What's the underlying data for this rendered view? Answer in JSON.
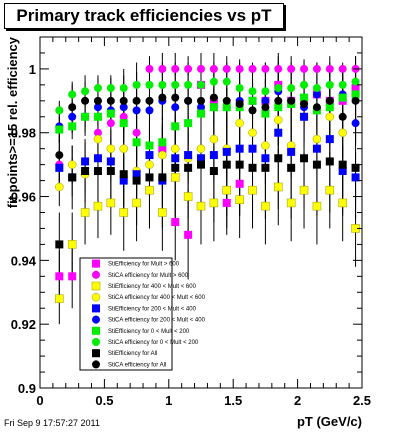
{
  "title": "Primary track efficiencies vs pT",
  "timestamp": "Fri Sep  9 17:57:27 2011",
  "chart_data": {
    "type": "scatter",
    "xlabel": "pT (GeV/c)",
    "ylabel": "fit points>=15 rel. efficiency",
    "xlim": [
      0,
      2.5
    ],
    "ylim": [
      0.9,
      1.01
    ],
    "xticks": [
      "0",
      "0.5",
      "1",
      "1.5",
      "2",
      "2.5"
    ],
    "yticks": [
      "0.9",
      "0.92",
      "0.94",
      "0.96",
      "0.98",
      "1"
    ],
    "legend_position": "bottom-center",
    "series": [
      {
        "name": "StiEfficiency  for Mult > 600",
        "color": "#ff00ff",
        "marker": "square",
        "x": [
          0.15,
          0.25,
          0.85,
          0.95,
          1.05,
          1.15,
          1.25,
          1.35,
          1.45,
          1.55,
          1.65,
          1.75,
          1.85,
          1.95,
          2.05,
          2.15,
          2.25,
          2.35,
          2.45
        ],
        "y": [
          0.935,
          0.935,
          0.962,
          0.975,
          0.952,
          0.948,
          0.995,
          0.99,
          0.958,
          0.964,
          0.99,
          0.99,
          0.995,
          0.99,
          0.99,
          0.992,
          0.99,
          0.99,
          0.994
        ],
        "err": [
          0.008,
          0.01,
          0.01,
          0.01,
          0.012,
          0.014,
          0.01,
          0.01,
          0.01,
          0.01,
          0.01,
          0.01,
          0.01,
          0.01,
          0.01,
          0.01,
          0.01,
          0.01,
          0.01
        ]
      },
      {
        "name": "StiCA efficiency  for Mult > 600",
        "color": "#ff00ff",
        "marker": "circle",
        "x": [
          0.15,
          0.35,
          0.45,
          0.55,
          0.65,
          0.75,
          0.85,
          0.95,
          1.05,
          1.15,
          1.25,
          1.35,
          1.45,
          1.55,
          1.65,
          1.75,
          1.85,
          1.95,
          2.05,
          2.15,
          2.25,
          2.35,
          2.45
        ],
        "y": [
          0.97,
          0.985,
          0.98,
          0.983,
          0.985,
          0.98,
          1.0,
          1.0,
          1.0,
          1.0,
          1.0,
          1.0,
          1.0,
          1.0,
          1.0,
          1.0,
          1.0,
          1.0,
          1.0,
          1.0,
          1.0,
          1.0,
          1.0
        ],
        "err": [
          0.008,
          0.006,
          0.006,
          0.006,
          0.006,
          0.008,
          0.002,
          0.002,
          0.002,
          0.002,
          0.002,
          0.002,
          0.002,
          0.002,
          0.002,
          0.002,
          0.002,
          0.002,
          0.002,
          0.002,
          0.002,
          0.002,
          0.002
        ]
      },
      {
        "name": "StiEfficiency  for 400 < Mult < 600",
        "color": "#ffff00",
        "marker": "square",
        "x": [
          0.15,
          0.25,
          0.35,
          0.45,
          0.55,
          0.65,
          0.75,
          0.85,
          0.95,
          1.05,
          1.15,
          1.25,
          1.35,
          1.45,
          1.55,
          1.65,
          1.75,
          1.85,
          1.95,
          2.05,
          2.15,
          2.25,
          2.35,
          2.45
        ],
        "y": [
          0.928,
          0.945,
          0.955,
          0.957,
          0.958,
          0.955,
          0.958,
          0.962,
          0.955,
          0.966,
          0.96,
          0.957,
          0.958,
          0.962,
          0.959,
          0.962,
          0.957,
          0.963,
          0.958,
          0.962,
          0.957,
          0.962,
          0.958,
          0.95
        ],
        "err": [
          0.008,
          0.01,
          0.01,
          0.01,
          0.01,
          0.012,
          0.012,
          0.012,
          0.012,
          0.012,
          0.012,
          0.012,
          0.012,
          0.012,
          0.012,
          0.012,
          0.012,
          0.012,
          0.012,
          0.012,
          0.012,
          0.012,
          0.012,
          0.012
        ]
      },
      {
        "name": "StiCA efficiency  for 400 < Mult < 600",
        "color": "#ffff00",
        "marker": "circle",
        "x": [
          0.15,
          0.25,
          0.35,
          0.45,
          0.55,
          0.65,
          0.75,
          0.85,
          0.95,
          1.05,
          1.15,
          1.25,
          1.35,
          1.45,
          1.55,
          1.65,
          1.75,
          1.85,
          1.95,
          2.05,
          2.15,
          2.25,
          2.35,
          2.45
        ],
        "y": [
          0.963,
          0.97,
          0.967,
          0.978,
          0.975,
          0.975,
          0.968,
          0.97,
          0.973,
          0.975,
          0.972,
          0.975,
          0.978,
          0.975,
          0.983,
          0.98,
          0.976,
          0.984,
          0.976,
          0.985,
          0.978,
          0.985,
          0.98,
          0.992
        ],
        "err": [
          0.006,
          0.006,
          0.006,
          0.006,
          0.006,
          0.008,
          0.008,
          0.008,
          0.008,
          0.008,
          0.008,
          0.008,
          0.008,
          0.008,
          0.008,
          0.008,
          0.008,
          0.008,
          0.008,
          0.008,
          0.008,
          0.008,
          0.008,
          0.008
        ]
      },
      {
        "name": "StiEfficiency  for 200 < Mult < 400",
        "color": "#0000ff",
        "marker": "square",
        "x": [
          0.15,
          0.25,
          0.35,
          0.45,
          0.55,
          0.65,
          0.75,
          0.85,
          0.95,
          1.05,
          1.15,
          1.25,
          1.35,
          1.45,
          1.55,
          1.65,
          1.75,
          1.85,
          1.95,
          2.05,
          2.15,
          2.25,
          2.35,
          2.45
        ],
        "y": [
          0.969,
          0.966,
          0.971,
          0.972,
          0.971,
          0.965,
          0.967,
          0.973,
          0.965,
          0.972,
          0.973,
          0.972,
          0.973,
          0.974,
          0.975,
          0.975,
          0.972,
          0.98,
          0.974,
          0.985,
          0.975,
          0.978,
          0.968,
          0.966
        ],
        "err": [
          0.006,
          0.006,
          0.006,
          0.006,
          0.006,
          0.008,
          0.008,
          0.008,
          0.008,
          0.008,
          0.008,
          0.008,
          0.008,
          0.008,
          0.008,
          0.008,
          0.008,
          0.008,
          0.008,
          0.008,
          0.008,
          0.008,
          0.008,
          0.008
        ]
      },
      {
        "name": "StiCA efficiency  for 200 < Mult < 400",
        "color": "#0000ff",
        "marker": "circle",
        "x": [
          0.15,
          0.25,
          0.35,
          0.45,
          0.55,
          0.65,
          0.75,
          0.85,
          0.95,
          1.05,
          1.15,
          1.25,
          1.35,
          1.45,
          1.55,
          1.65,
          1.75,
          1.85,
          1.95,
          2.05,
          2.15,
          2.25,
          2.35,
          2.45
        ],
        "y": [
          0.982,
          0.985,
          0.985,
          0.988,
          0.987,
          0.988,
          0.987,
          0.987,
          0.99,
          0.988,
          0.99,
          0.988,
          0.988,
          0.988,
          0.99,
          0.99,
          0.99,
          0.993,
          0.99,
          0.988,
          0.992,
          0.99,
          0.992,
          0.983
        ],
        "err": [
          0.005,
          0.005,
          0.005,
          0.005,
          0.005,
          0.006,
          0.006,
          0.006,
          0.006,
          0.006,
          0.006,
          0.006,
          0.006,
          0.006,
          0.006,
          0.006,
          0.006,
          0.006,
          0.006,
          0.006,
          0.006,
          0.006,
          0.006,
          0.006
        ]
      },
      {
        "name": "StiEfficiency  for 0 < Mult < 200",
        "color": "#00ee00",
        "marker": "square",
        "x": [
          0.15,
          0.25,
          0.35,
          0.45,
          0.55,
          0.65,
          0.75,
          0.85,
          0.95,
          1.05,
          1.15,
          1.25,
          1.35,
          1.45,
          1.55,
          1.65,
          1.75,
          1.85,
          1.95,
          2.05,
          2.15,
          2.25,
          2.35,
          2.45
        ],
        "y": [
          0.981,
          0.982,
          0.985,
          0.985,
          0.986,
          0.983,
          0.977,
          0.976,
          0.977,
          0.982,
          0.983,
          0.986,
          0.988,
          0.988,
          0.988,
          0.99,
          0.986,
          0.988,
          0.989,
          0.991,
          0.987,
          0.988,
          0.991,
          0.992
        ],
        "err": [
          0.004,
          0.004,
          0.004,
          0.004,
          0.004,
          0.006,
          0.006,
          0.006,
          0.006,
          0.006,
          0.006,
          0.006,
          0.006,
          0.006,
          0.006,
          0.006,
          0.006,
          0.006,
          0.006,
          0.006,
          0.006,
          0.006,
          0.006,
          0.006
        ]
      },
      {
        "name": "StiCA efficiency  for 0 < Mult < 200",
        "color": "#00ee00",
        "marker": "circle",
        "x": [
          0.15,
          0.25,
          0.35,
          0.45,
          0.55,
          0.65,
          0.75,
          0.85,
          0.95,
          1.05,
          1.15,
          1.25,
          1.35,
          1.45,
          1.55,
          1.65,
          1.75,
          1.85,
          1.95,
          2.05,
          2.15,
          2.25,
          2.35,
          2.45
        ],
        "y": [
          0.987,
          0.992,
          0.993,
          0.994,
          0.994,
          0.994,
          0.995,
          0.995,
          0.995,
          0.995,
          0.995,
          0.995,
          0.996,
          0.996,
          0.994,
          0.993,
          0.993,
          0.994,
          0.994,
          0.995,
          0.994,
          0.995,
          0.995,
          0.996
        ],
        "err": [
          0.003,
          0.003,
          0.003,
          0.003,
          0.003,
          0.004,
          0.004,
          0.004,
          0.004,
          0.004,
          0.004,
          0.004,
          0.004,
          0.004,
          0.004,
          0.004,
          0.004,
          0.004,
          0.004,
          0.004,
          0.004,
          0.004,
          0.004,
          0.004
        ]
      },
      {
        "name": "StiEfficiency  for All",
        "color": "#000000",
        "marker": "square",
        "x": [
          0.15,
          0.25,
          0.35,
          0.45,
          0.55,
          0.65,
          0.75,
          0.85,
          0.95,
          1.05,
          1.15,
          1.25,
          1.35,
          1.45,
          1.55,
          1.65,
          1.75,
          1.85,
          1.95,
          2.05,
          2.15,
          2.25,
          2.35,
          2.45
        ],
        "y": [
          0.945,
          0.966,
          0.968,
          0.968,
          0.968,
          0.967,
          0.965,
          0.966,
          0.966,
          0.969,
          0.969,
          0.97,
          0.968,
          0.97,
          0.97,
          0.969,
          0.969,
          0.972,
          0.969,
          0.972,
          0.97,
          0.971,
          0.97,
          0.969
        ],
        "err": [
          0.01,
          0.01,
          0.01,
          0.01,
          0.01,
          0.012,
          0.014,
          0.016,
          0.016,
          0.016,
          0.016,
          0.016,
          0.016,
          0.016,
          0.016,
          0.016,
          0.016,
          0.016,
          0.016,
          0.016,
          0.016,
          0.016,
          0.016,
          0.016
        ]
      },
      {
        "name": "StiCA efficiency  for All",
        "color": "#000000",
        "marker": "circle",
        "x": [
          0.15,
          0.25,
          0.35,
          0.45,
          0.55,
          0.65,
          0.75,
          0.85,
          0.95,
          1.05,
          1.15,
          1.25,
          1.35,
          1.45,
          1.55,
          1.65,
          1.75,
          1.85,
          1.95,
          2.05,
          2.15,
          2.25,
          2.35,
          2.45
        ],
        "y": [
          0.973,
          0.988,
          0.99,
          0.99,
          0.99,
          0.99,
          0.99,
          0.99,
          0.991,
          0.991,
          0.99,
          0.99,
          0.991,
          0.99,
          0.989,
          0.987,
          0.988,
          0.99,
          0.99,
          0.989,
          0.988,
          0.99,
          0.985,
          0.99
        ],
        "err": [
          0.008,
          0.008,
          0.008,
          0.008,
          0.008,
          0.01,
          0.012,
          0.014,
          0.014,
          0.014,
          0.014,
          0.014,
          0.014,
          0.014,
          0.014,
          0.014,
          0.014,
          0.014,
          0.014,
          0.014,
          0.014,
          0.014,
          0.014,
          0.014
        ]
      }
    ]
  }
}
